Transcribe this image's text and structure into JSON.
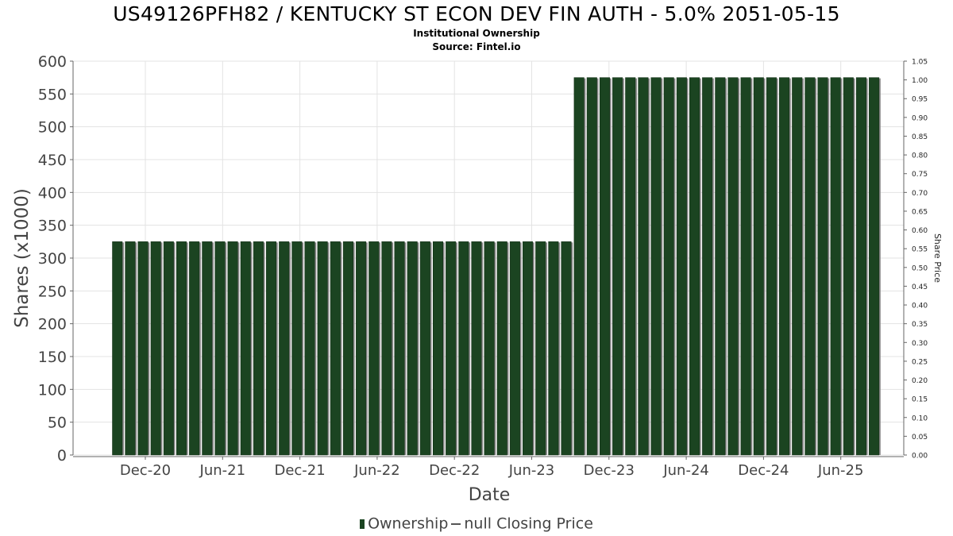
{
  "chart_data": {
    "type": "bar",
    "title": "US49126PFH82 / KENTUCKY ST ECON DEV FIN AUTH - 5.0% 2051-05-15",
    "subtitle": "Institutional Ownership",
    "source": "Source: Fintel.io",
    "xlabel": "Date",
    "ylabel": "Shares (x1000)",
    "y2label": "Share Price",
    "ylim": [
      0,
      600
    ],
    "y2lim": [
      0,
      1.05
    ],
    "yticks": [
      "0",
      "50",
      "100",
      "150",
      "200",
      "250",
      "300",
      "350",
      "400",
      "450",
      "500",
      "550",
      "600"
    ],
    "y2ticks": [
      "0.00",
      "0.05",
      "0.10",
      "0.15",
      "0.20",
      "0.25",
      "0.30",
      "0.35",
      "0.40",
      "0.45",
      "0.50",
      "0.55",
      "0.60",
      "0.65",
      "0.70",
      "0.75",
      "0.80",
      "0.85",
      "0.90",
      "0.95",
      "1.00",
      "1.05"
    ],
    "xticks": [
      "Dec-20",
      "Jun-21",
      "Dec-21",
      "Jun-22",
      "Dec-22",
      "Jun-23",
      "Dec-23",
      "Jun-24",
      "Dec-24",
      "Jun-25"
    ],
    "grid": true,
    "legend_position": "bottom",
    "series": [
      {
        "name": "Ownership",
        "color": "#1b4421",
        "values": [
          325,
          325,
          325,
          325,
          325,
          325,
          325,
          325,
          325,
          325,
          325,
          325,
          325,
          325,
          325,
          325,
          325,
          325,
          325,
          325,
          325,
          325,
          325,
          325,
          325,
          325,
          325,
          325,
          325,
          325,
          325,
          325,
          325,
          325,
          325,
          325,
          575,
          575,
          575,
          575,
          575,
          575,
          575,
          575,
          575,
          575,
          575,
          575,
          575,
          575,
          575,
          575,
          575,
          575,
          575,
          575,
          575,
          575,
          575,
          575
        ]
      }
    ],
    "legend": [
      "Ownership",
      "null Closing Price"
    ]
  }
}
